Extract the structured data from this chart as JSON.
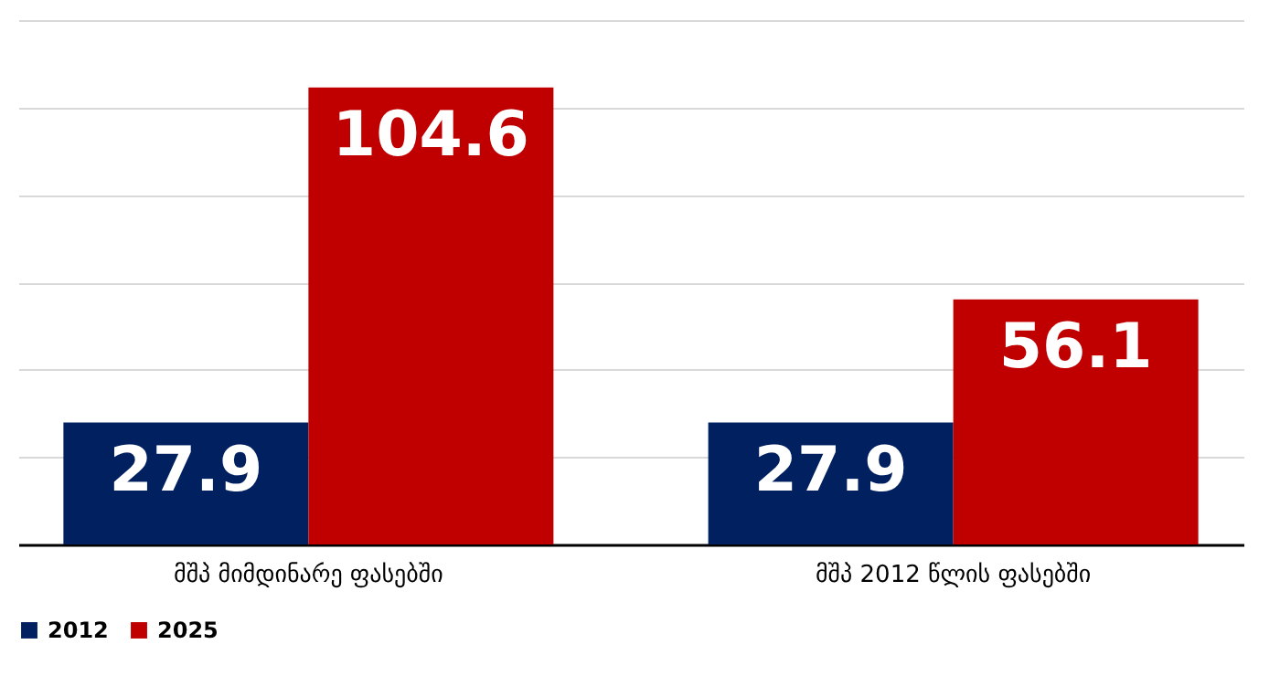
{
  "chart_data": {
    "type": "bar",
    "categories": [
      "მშპ მიმდინარე ფასებში",
      "მშპ 2012 წლის ფასებში"
    ],
    "series": [
      {
        "name": "2012",
        "color": "#002060",
        "values": [
          27.9,
          27.9
        ]
      },
      {
        "name": "2025",
        "color": "#c00000",
        "values": [
          104.6,
          56.1
        ]
      }
    ],
    "ylim": [
      0,
      120
    ],
    "yticks": [
      {
        "value": 0,
        "label": null
      },
      {
        "value": 20,
        "label": null
      },
      {
        "value": 40,
        "label": null
      },
      {
        "value": 60,
        "label": null
      },
      {
        "value": 80,
        "label": null
      },
      {
        "value": 100,
        "label": null
      },
      {
        "value": 120,
        "label": null
      }
    ],
    "grid": "y",
    "tick_labels": "x",
    "data_labels": true,
    "legend": "bottom"
  }
}
